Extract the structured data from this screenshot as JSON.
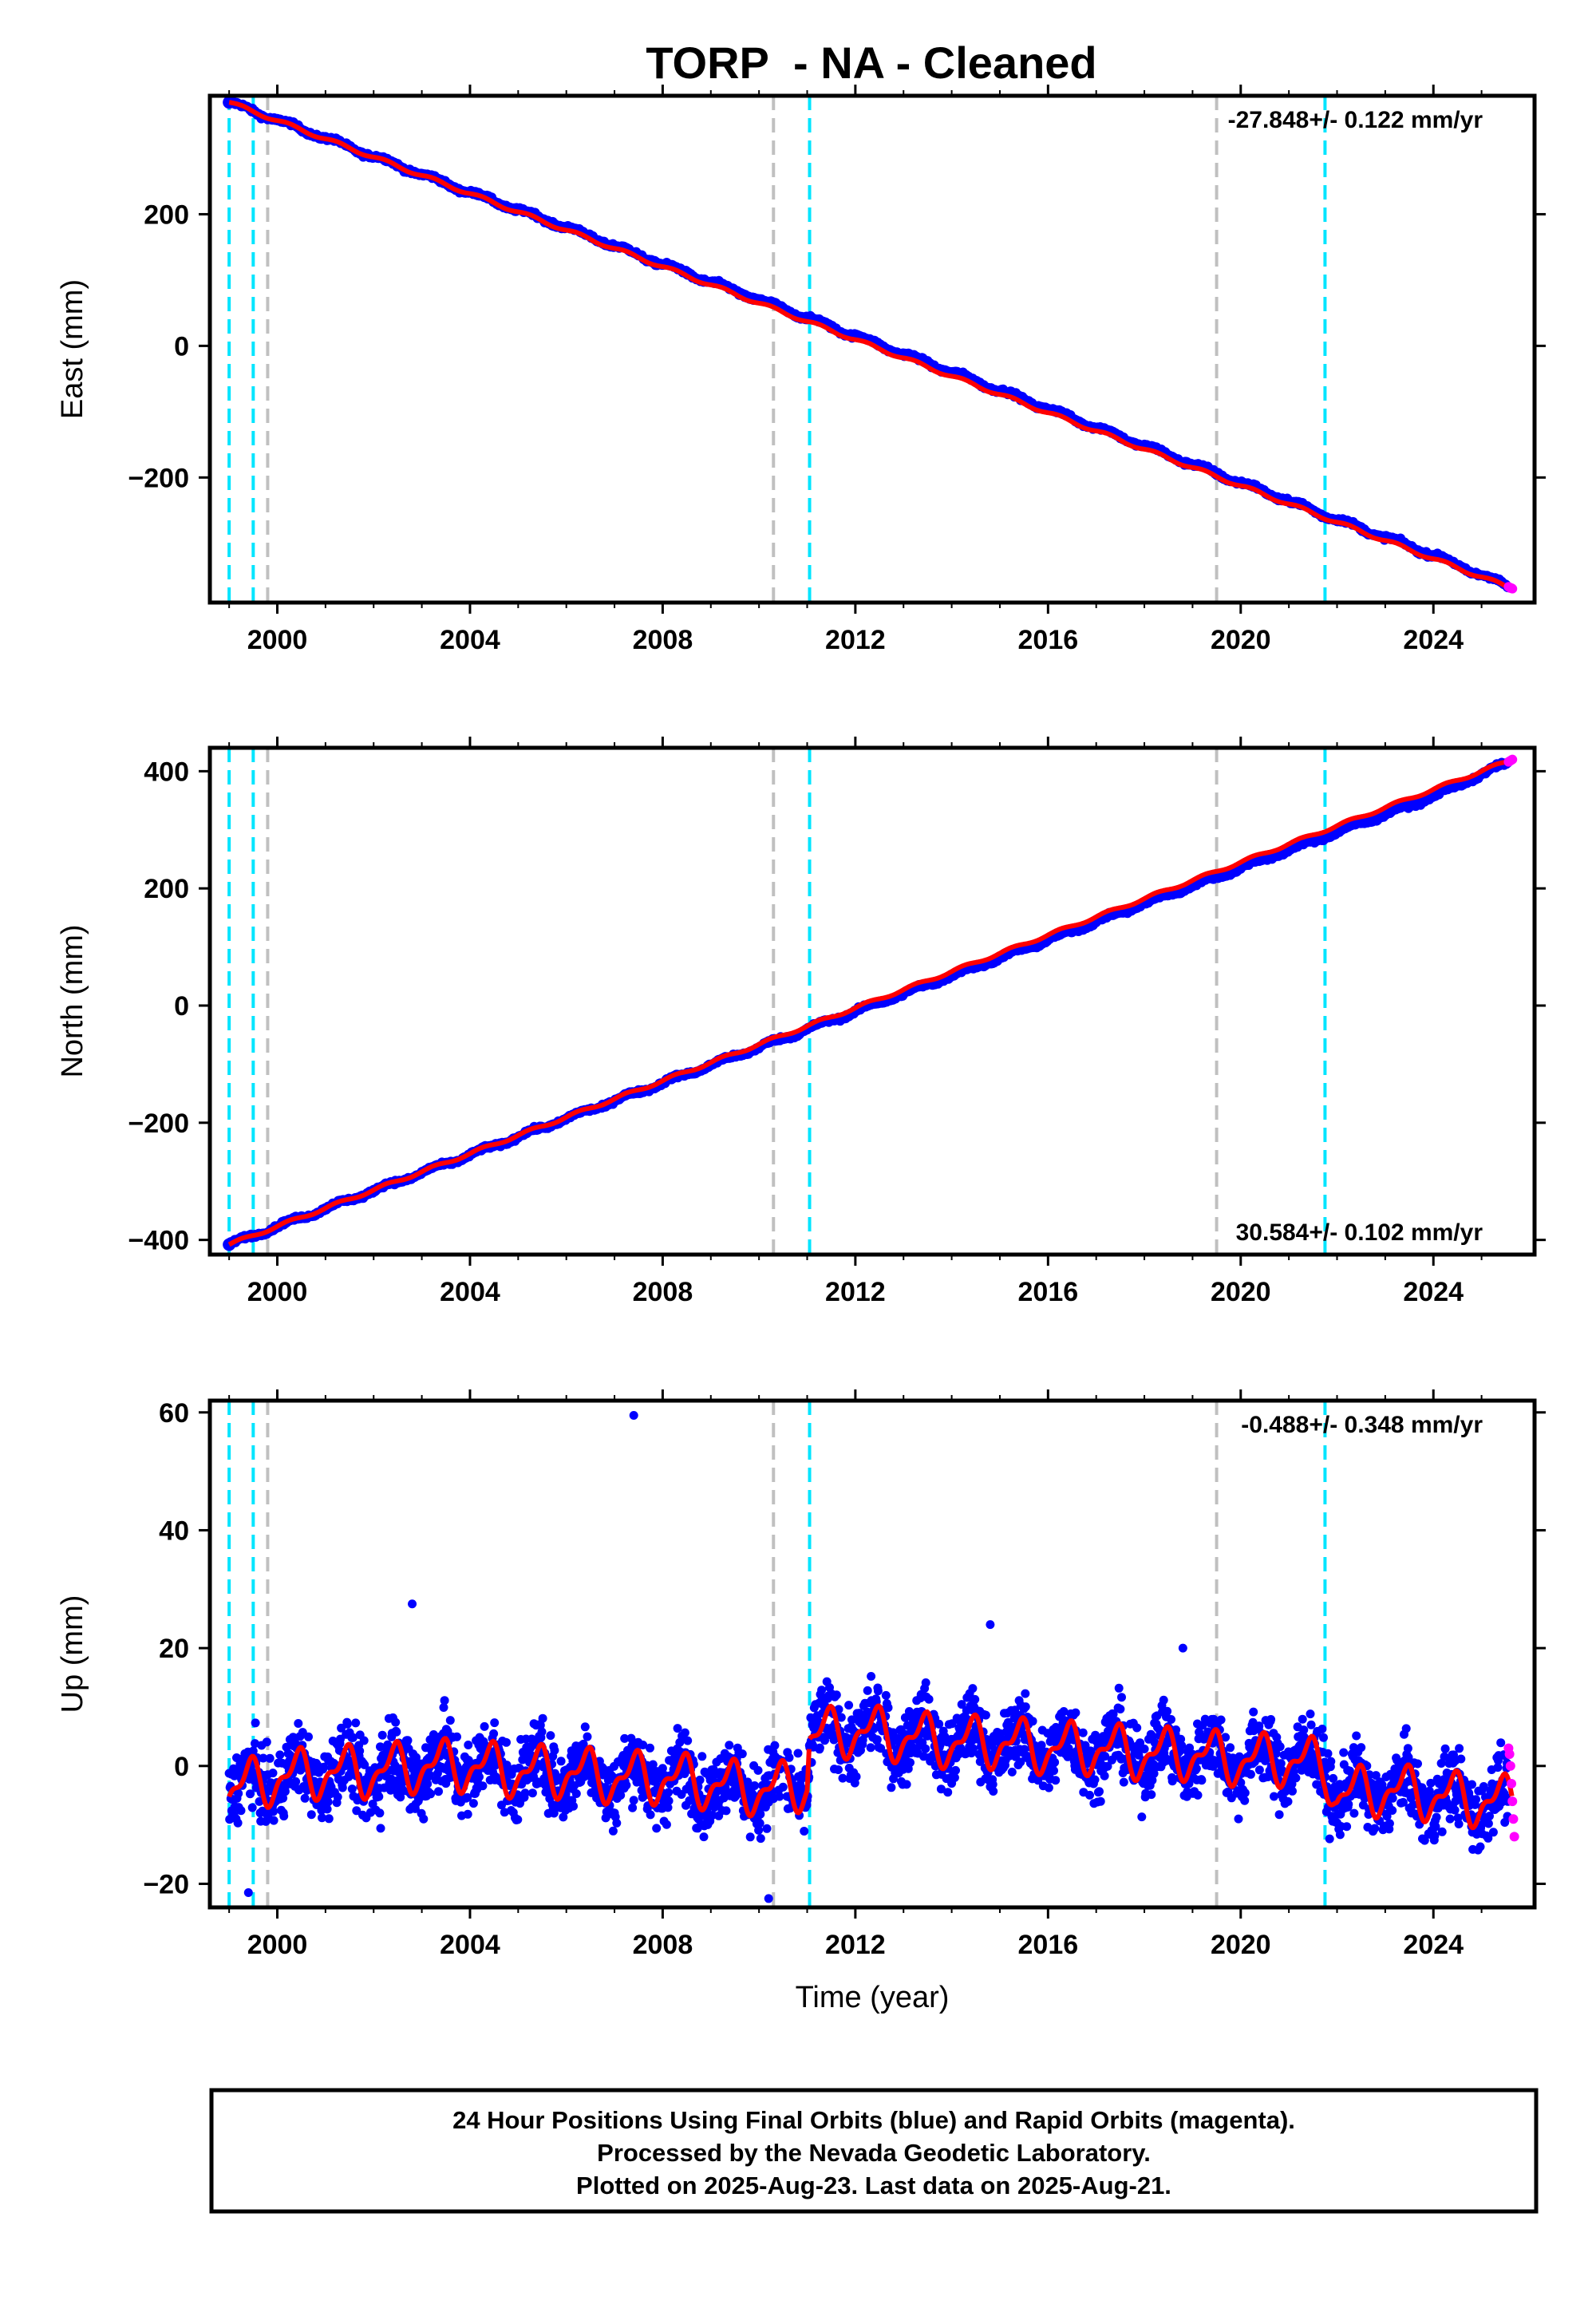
{
  "chart_data": {
    "title": "TORP  - NA - Cleaned",
    "type": "scatter",
    "xlabel": "Time (year)",
    "xlim": [
      1998.6,
      2026.1
    ],
    "x_ticks": [
      "2000",
      "2004",
      "2008",
      "2012",
      "2016",
      "2020",
      "2024"
    ],
    "x_tick_values": [
      2000,
      2004,
      2008,
      2012,
      2016,
      2020,
      2024
    ],
    "colors": {
      "final_orbits": "#0000ff",
      "rapid_orbits": "#ff00ff",
      "model_fit": "#ff0000",
      "antenna_change": "#00e5ff",
      "equipment_change": "#c0c0c0"
    },
    "vertical_lines": {
      "cyan": [
        1999.0,
        1999.5,
        2011.05,
        2021.75
      ],
      "gray": [
        1999.8,
        2010.3,
        2019.5
      ]
    },
    "panels": [
      {
        "name": "East",
        "ylabel": "East (mm)",
        "ylim": [
          -390,
          380
        ],
        "yticks": [
          -200,
          0,
          200
        ],
        "rate": "-27.848+/- 0.122 mm/yr",
        "rate_position": "top-right",
        "series": [
          {
            "name": "final",
            "x": [
              1999.0,
              2000.0,
              2002.0,
              2004.0,
              2006.0,
              2008.0,
              2010.0,
              2012.0,
              2014.0,
              2016.0,
              2018.0,
              2020.0,
              2022.0,
              2024.0,
              2025.55
            ],
            "y": [
              370,
              343,
              288,
              233,
              180,
              124,
              70,
              15,
              -40,
              -96,
              -152,
              -208,
              -264,
              -318,
              -365
            ]
          },
          {
            "name": "rapid",
            "x": [
              2025.56,
              2025.58,
              2025.6,
              2025.62,
              2025.64
            ],
            "y": [
              -366,
              -367,
              -368,
              -368,
              -369
            ]
          },
          {
            "name": "fit",
            "x": [
              1999.0,
              2025.64
            ],
            "y": [
              370,
              -369
            ]
          }
        ]
      },
      {
        "name": "North",
        "ylabel": "North (mm)",
        "ylim": [
          -425,
          440
        ],
        "yticks": [
          -400,
          -200,
          0,
          200,
          400
        ],
        "rate": "30.584+/- 0.102 mm/yr",
        "rate_position": "bottom-right",
        "series": [
          {
            "name": "final",
            "x": [
              1999.0,
              2000.0,
              2002.0,
              2004.0,
              2006.0,
              2008.0,
              2010.0,
              2012.0,
              2014.0,
              2016.0,
              2018.0,
              2020.0,
              2022.0,
              2024.0,
              2025.55
            ],
            "y": [
              -408,
              -377,
              -316,
              -255,
              -193,
              -132,
              -71,
              -10,
              51,
              112,
              174,
              235,
              296,
              357,
              415
            ]
          },
          {
            "name": "rapid",
            "x": [
              2025.56,
              2025.58,
              2025.6,
              2025.62,
              2025.64
            ],
            "y": [
              416,
              417,
              418,
              419,
              420
            ]
          },
          {
            "name": "fit",
            "x": [
              1999.0,
              2025.64
            ],
            "y": [
              -408,
              420
            ]
          }
        ]
      },
      {
        "name": "Up",
        "ylabel": "Up (mm)",
        "ylim": [
          -24,
          62
        ],
        "yticks": [
          -20,
          0,
          20,
          40,
          60
        ],
        "rate": "-0.488+/- 0.348 mm/yr",
        "rate_position": "top-right",
        "series": [
          {
            "name": "fit",
            "x": [
              1999.0,
              2000.0,
              2001.0,
              2002.0,
              2003.0,
              2004.0,
              2005.0,
              2006.0,
              2007.0,
              2008.0,
              2009.0,
              2010.0,
              2010.3,
              2011.0,
              2011.05,
              2012.0,
              2013.0,
              2014.0,
              2015.0,
              2016.0,
              2017.0,
              2018.0,
              2019.0,
              2020.0,
              2021.0,
              2021.75,
              2022.0,
              2023.0,
              2024.0,
              2025.0,
              2025.64
            ],
            "y": [
              -4,
              -2,
              -1,
              -1,
              0,
              0,
              -1,
              -1,
              -2,
              -2,
              -3,
              -4,
              -4,
              -3,
              5,
              6,
              5,
              4,
              4,
              3,
              3,
              2,
              2,
              1,
              1,
              0,
              -5,
              -4,
              -5,
              -6,
              -6
            ]
          },
          {
            "name": "rapid",
            "x": [
              2025.56,
              2025.58,
              2025.6,
              2025.62,
              2025.64,
              2025.66,
              2025.68
            ],
            "y": [
              3,
              2,
              0,
              -3,
              -6,
              -9,
              -12
            ]
          }
        ],
        "outliers": [
          {
            "x": 2007.4,
            "y": 59.5
          },
          {
            "x": 2002.8,
            "y": 27.5
          },
          {
            "x": 2014.8,
            "y": 24
          },
          {
            "x": 2018.8,
            "y": 20
          },
          {
            "x": 2010.2,
            "y": -22.5
          },
          {
            "x": 1999.4,
            "y": -21.5
          }
        ]
      }
    ]
  },
  "footer": {
    "line1": "24 Hour Positions Using Final Orbits (blue) and Rapid Orbits (magenta).",
    "line2": "Processed by the Nevada Geodetic Laboratory.",
    "line3": "Plotted on 2025-Aug-23. Last data on 2025-Aug-21."
  }
}
